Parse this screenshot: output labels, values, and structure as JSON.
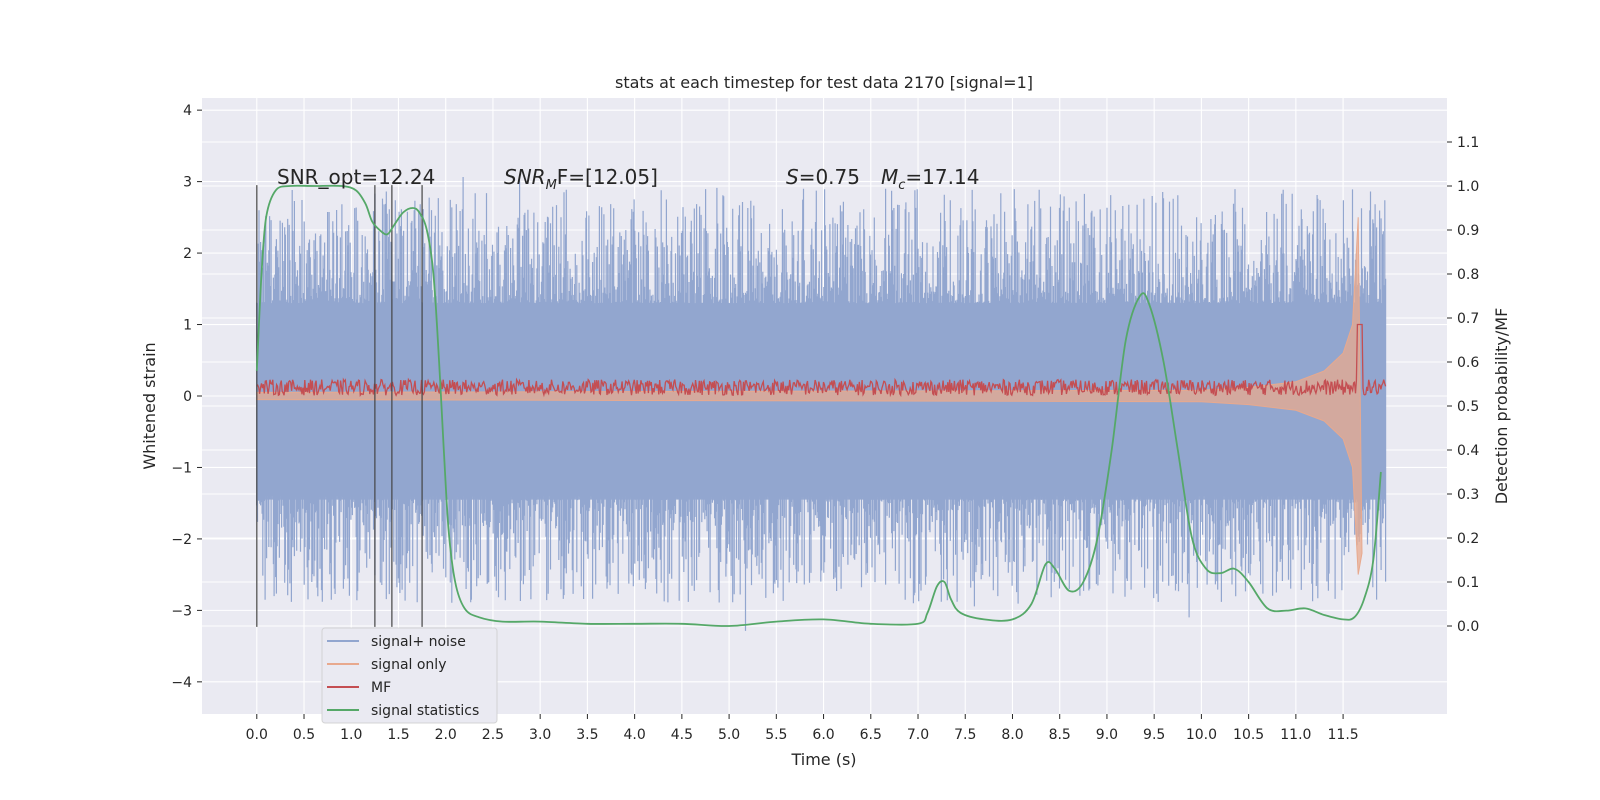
{
  "chart_data": {
    "type": "line",
    "title": "stats at each timestep for test data 2170 [signal=1]",
    "xlabel": "Time (s)",
    "ylabel_left": "Whitened strain",
    "ylabel_right": "Detection probability/MF",
    "xlim": [
      -0.58,
      12.6
    ],
    "ylim_left": [
      -4.45,
      4.17
    ],
    "ylim_right": [
      -0.2,
      1.2
    ],
    "x_ticks": [
      "0.0",
      "0.5",
      "1.0",
      "1.5",
      "2.0",
      "2.5",
      "3.0",
      "3.5",
      "4.0",
      "4.5",
      "5.0",
      "5.5",
      "6.0",
      "6.5",
      "7.0",
      "7.5",
      "8.0",
      "8.5",
      "9.0",
      "9.5",
      "10.0",
      "10.5",
      "11.0",
      "11.5"
    ],
    "y_ticks_left": [
      "−4",
      "−3",
      "−2",
      "−1",
      "0",
      "1",
      "2",
      "3",
      "4"
    ],
    "y_ticks_right": [
      "0.0",
      "0.1",
      "0.2",
      "0.3",
      "0.4",
      "0.5",
      "0.6",
      "0.7",
      "0.8",
      "0.9",
      "1.0",
      "1.1"
    ],
    "grid": true,
    "legend_position": "lower-left",
    "annotations": {
      "snr_opt": "SNR_opt=12.24",
      "snr_mf_main": "SNR",
      "snr_mf_sub": "M",
      "snr_mf_rest": "F=[12.05]",
      "s_main": "S",
      "s_rest": "=0.75",
      "mc_main": "M",
      "mc_sub": "c",
      "mc_rest": "=17.14"
    },
    "vertical_markers": [
      0.0,
      1.25,
      1.43,
      1.75
    ],
    "series": [
      {
        "name": "signal+ noise",
        "color": "#92a6cf",
        "axis": "left",
        "noise_extent": [
          -2.0,
          2.6
        ],
        "time_range": [
          0.0,
          11.95
        ]
      },
      {
        "name": "signal only",
        "color": "#e8a98e",
        "axis": "left",
        "points": [
          [
            0.0,
            0.05
          ],
          [
            10.0,
            0.08
          ],
          [
            10.5,
            0.12
          ],
          [
            11.0,
            0.2
          ],
          [
            11.3,
            0.35
          ],
          [
            11.5,
            0.6
          ],
          [
            11.6,
            1.0
          ],
          [
            11.66,
            2.5
          ],
          [
            11.7,
            -2.2
          ]
        ]
      },
      {
        "name": "MF",
        "color": "#c44e52",
        "axis": "left",
        "level": 0.12,
        "time_range": [
          0.0,
          11.95
        ]
      },
      {
        "name": "signal statistics",
        "color": "#55a868",
        "axis": "right",
        "points": [
          [
            0.0,
            0.58
          ],
          [
            0.05,
            0.8
          ],
          [
            0.1,
            0.93
          ],
          [
            0.2,
            0.99
          ],
          [
            0.35,
            1.0
          ],
          [
            0.6,
            1.0
          ],
          [
            0.9,
            1.0
          ],
          [
            1.05,
            0.99
          ],
          [
            1.15,
            0.96
          ],
          [
            1.22,
            0.92
          ],
          [
            1.3,
            0.9
          ],
          [
            1.38,
            0.89
          ],
          [
            1.45,
            0.91
          ],
          [
            1.55,
            0.94
          ],
          [
            1.65,
            0.95
          ],
          [
            1.72,
            0.94
          ],
          [
            1.8,
            0.9
          ],
          [
            1.87,
            0.8
          ],
          [
            1.93,
            0.6
          ],
          [
            1.98,
            0.4
          ],
          [
            2.03,
            0.22
          ],
          [
            2.1,
            0.1
          ],
          [
            2.2,
            0.04
          ],
          [
            2.35,
            0.02
          ],
          [
            2.6,
            0.01
          ],
          [
            3.0,
            0.01
          ],
          [
            3.5,
            0.005
          ],
          [
            4.0,
            0.005
          ],
          [
            4.5,
            0.005
          ],
          [
            5.0,
            0.0
          ],
          [
            5.5,
            0.01
          ],
          [
            6.0,
            0.015
          ],
          [
            6.5,
            0.005
          ],
          [
            7.0,
            0.005
          ],
          [
            7.1,
            0.03
          ],
          [
            7.2,
            0.09
          ],
          [
            7.28,
            0.1
          ],
          [
            7.35,
            0.06
          ],
          [
            7.45,
            0.03
          ],
          [
            7.7,
            0.015
          ],
          [
            8.0,
            0.015
          ],
          [
            8.2,
            0.05
          ],
          [
            8.35,
            0.14
          ],
          [
            8.45,
            0.13
          ],
          [
            8.6,
            0.08
          ],
          [
            8.75,
            0.1
          ],
          [
            8.9,
            0.2
          ],
          [
            9.05,
            0.4
          ],
          [
            9.2,
            0.65
          ],
          [
            9.35,
            0.75
          ],
          [
            9.45,
            0.73
          ],
          [
            9.6,
            0.6
          ],
          [
            9.75,
            0.4
          ],
          [
            9.9,
            0.2
          ],
          [
            10.05,
            0.13
          ],
          [
            10.2,
            0.12
          ],
          [
            10.35,
            0.13
          ],
          [
            10.5,
            0.1
          ],
          [
            10.7,
            0.04
          ],
          [
            10.9,
            0.035
          ],
          [
            11.1,
            0.04
          ],
          [
            11.3,
            0.025
          ],
          [
            11.5,
            0.015
          ],
          [
            11.62,
            0.02
          ],
          [
            11.72,
            0.06
          ],
          [
            11.82,
            0.15
          ],
          [
            11.9,
            0.35
          ]
        ]
      }
    ]
  }
}
